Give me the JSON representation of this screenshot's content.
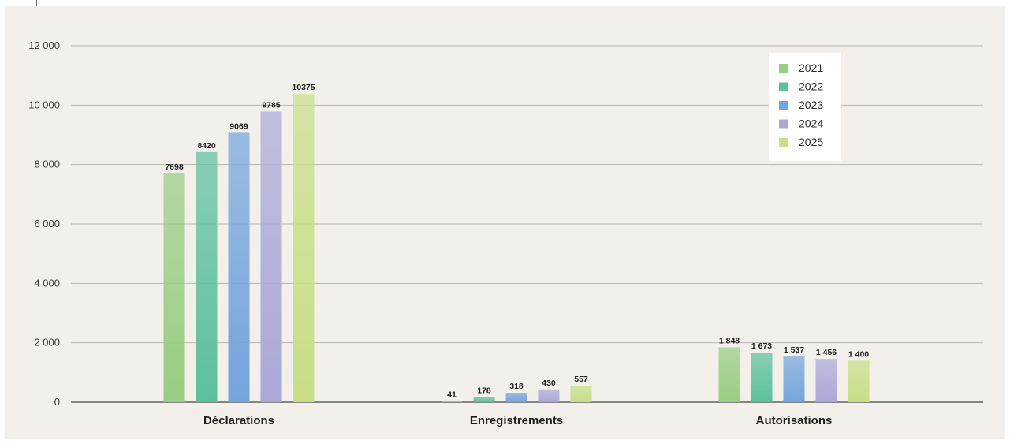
{
  "chart_data": {
    "type": "bar",
    "categories": [
      "Déclarations",
      "Enregistrements",
      "Autorisations"
    ],
    "series": [
      {
        "name": "2021",
        "values": [
          7698,
          41,
          1848
        ],
        "labels": [
          "7698",
          "41",
          "1 848"
        ],
        "color": "#98cd82"
      },
      {
        "name": "2022",
        "values": [
          8420,
          178,
          1673
        ],
        "labels": [
          "8420",
          "178",
          "1 673"
        ],
        "color": "#5cc09d"
      },
      {
        "name": "2023",
        "values": [
          9069,
          318,
          1537
        ],
        "labels": [
          "9069",
          "318",
          "1 537"
        ],
        "color": "#74a5dc"
      },
      {
        "name": "2024",
        "values": [
          9785,
          430,
          1456
        ],
        "labels": [
          "9785",
          "430",
          "1 456"
        ],
        "color": "#aba8d8"
      },
      {
        "name": "2025",
        "values": [
          10375,
          557,
          1400
        ],
        "labels": [
          "10375",
          "557",
          "1 400"
        ],
        "color": "#c7df86"
      }
    ],
    "y_ticks": [
      "0",
      "2 000",
      "4 000",
      "6 000",
      "8 000",
      "10 000",
      "12 000"
    ],
    "y_tick_values": [
      0,
      2000,
      4000,
      6000,
      8000,
      10000,
      12000
    ],
    "ylim": [
      0,
      12000
    ],
    "grid": true,
    "legend_position": "top-right",
    "title": "",
    "xlabel": "",
    "ylabel": ""
  }
}
